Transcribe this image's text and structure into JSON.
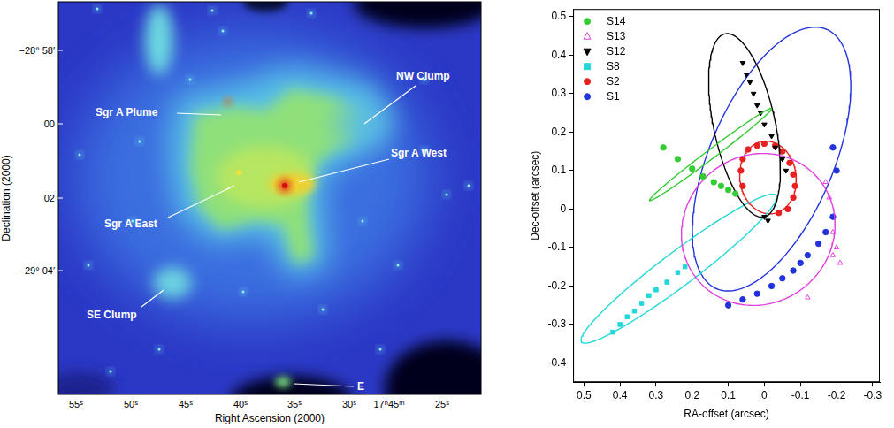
{
  "image_panel": {
    "x_label": "Right Ascension (2000)",
    "y_label": "Declination (2000)",
    "x_tick_labels": [
      "55ˢ",
      "50ˢ",
      "45ˢ",
      "40ˢ",
      "35ˢ",
      "30ˢ",
      "17ʰ45ᵐ",
      "25ˢ"
    ],
    "y_tick_labels": [
      "−28° 58′",
      "00",
      "02",
      "−29° 04′"
    ],
    "annotations": [
      "Sgr A Plume",
      "NW Clump",
      "Sgr A West",
      "Sgr A East",
      "SE Clump",
      "E"
    ]
  },
  "chart_data": {
    "type": "scatter",
    "x_label": "RA-offset (arcsec)",
    "y_label": "Dec-offset (arcsec)",
    "xlim": [
      0.53,
      -0.32
    ],
    "ylim": [
      -0.45,
      0.52
    ],
    "xticks": [
      0.5,
      0.4,
      0.3,
      0.2,
      0.1,
      0,
      -0.1,
      -0.2,
      -0.3
    ],
    "yticks": [
      -0.4,
      -0.3,
      -0.2,
      -0.1,
      0,
      0.1,
      0.2,
      0.3,
      0.4,
      0.5
    ],
    "grid": false,
    "legend": "upper left",
    "series": [
      {
        "name": "S14",
        "color": "#33cc33",
        "marker": "circle",
        "x": [
          0.28,
          0.24,
          0.2,
          0.17,
          0.14,
          0.12,
          0.1,
          0.08
        ],
        "y": [
          0.16,
          0.13,
          0.105,
          0.085,
          0.07,
          0.06,
          0.05,
          0.04
        ],
        "orbit": {
          "center": [
            0.149,
            0.142
          ],
          "semi_major": 0.207,
          "semi_minor": 0.012,
          "angle": 144.7
        }
      },
      {
        "name": "S13",
        "color": "#e040e0",
        "marker": "open-triangle",
        "x": [
          -0.17,
          -0.18,
          -0.19,
          -0.2,
          -0.21,
          -0.19,
          -0.12
        ],
        "y": [
          0.07,
          0.03,
          -0.06,
          -0.1,
          -0.14,
          -0.12,
          -0.23
        ],
        "orbit": {
          "center": [
            0.017,
            -0.053
          ],
          "semi_major": 0.215,
          "semi_minor": 0.195,
          "angle": 160
        }
      },
      {
        "name": "S12",
        "color": "#000000",
        "marker": "triangle-down",
        "x": [
          0.06,
          0.05,
          0.04,
          0.03,
          0.02,
          0.01,
          0.0,
          -0.02,
          -0.03,
          -0.05,
          -0.06,
          0.0,
          -0.01
        ],
        "y": [
          0.38,
          0.35,
          0.33,
          0.3,
          0.27,
          0.25,
          0.22,
          0.19,
          0.16,
          0.13,
          0.1,
          -0.02,
          -0.03
        ],
        "orbit": {
          "center": [
            0.055,
            0.2175
          ],
          "semi_major": 0.244,
          "semi_minor": 0.085,
          "angle": 77
        }
      },
      {
        "name": "S8",
        "color": "#22d8d8",
        "marker": "square",
        "x": [
          0.42,
          0.4,
          0.38,
          0.36,
          0.34,
          0.32,
          0.3,
          0.27,
          0.24,
          0.22
        ],
        "y": [
          -0.32,
          -0.3,
          -0.28,
          -0.265,
          -0.245,
          -0.225,
          -0.21,
          -0.19,
          -0.165,
          -0.15
        ],
        "orbit": {
          "center": [
            0.237,
            -0.155
          ],
          "semi_major": 0.33,
          "semi_minor": 0.045,
          "angle": 144.8
        }
      },
      {
        "name": "S2",
        "color": "#e82020",
        "marker": "circle",
        "x": [
          0.06,
          0.065,
          0.06,
          0.045,
          0.02,
          0.0,
          -0.03,
          -0.05,
          -0.07,
          -0.08,
          -0.085,
          -0.08,
          -0.065,
          -0.04
        ],
        "y": [
          0.06,
          0.1,
          0.13,
          0.155,
          0.165,
          0.17,
          0.165,
          0.15,
          0.12,
          0.09,
          0.06,
          0.03,
          0.0,
          -0.01
        ],
        "orbit": {
          "center": [
            -0.01,
            0.082
          ],
          "semi_major": 0.095,
          "semi_minor": 0.078,
          "angle": 80
        }
      },
      {
        "name": "S1",
        "color": "#2233dd",
        "marker": "circle",
        "x": [
          -0.19,
          -0.2,
          -0.19,
          -0.17,
          -0.15,
          -0.12,
          -0.1,
          -0.08,
          -0.05,
          -0.02,
          0.02,
          0.06,
          0.1
        ],
        "y": [
          0.16,
          0.1,
          -0.02,
          -0.06,
          -0.09,
          -0.12,
          -0.14,
          -0.16,
          -0.18,
          -0.2,
          -0.22,
          -0.235,
          -0.25
        ],
        "orbit": {
          "center": [
            -0.02,
            0.13
          ],
          "semi_major": 0.37,
          "semi_minor": 0.17,
          "angle": 115
        }
      }
    ]
  }
}
